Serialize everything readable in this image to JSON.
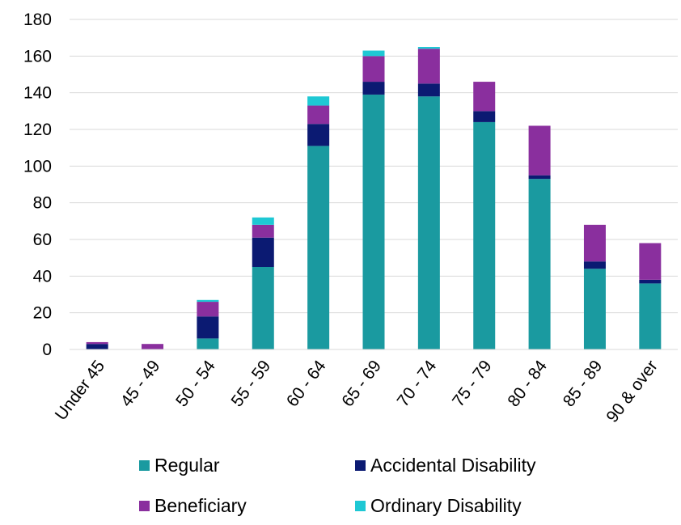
{
  "chart_data": {
    "type": "bar",
    "stacked": true,
    "title": "",
    "xlabel": "",
    "ylabel": "",
    "ylim": [
      0,
      180
    ],
    "yticks": [
      0,
      20,
      40,
      60,
      80,
      100,
      120,
      140,
      160,
      180
    ],
    "grid": "horizontal",
    "legend_position": "bottom",
    "categories": [
      "Under 45",
      "45 - 49",
      "50 - 54",
      "55 - 59",
      "60 - 64",
      "65 - 69",
      "70 - 74",
      "75 - 79",
      "80 - 84",
      "85 - 89",
      "90 & over"
    ],
    "series": [
      {
        "name": "Regular",
        "color": "#1a9aa0",
        "values": [
          0,
          0,
          6,
          45,
          111,
          139,
          138,
          124,
          93,
          44,
          36
        ]
      },
      {
        "name": "Accidental Disability",
        "color": "#0b1a72",
        "values": [
          3,
          0,
          12,
          16,
          12,
          7,
          7,
          6,
          2,
          4,
          2
        ]
      },
      {
        "name": "Beneficiary",
        "color": "#8a2f9e",
        "values": [
          1,
          3,
          8,
          7,
          10,
          14,
          19,
          16,
          27,
          20,
          20
        ]
      },
      {
        "name": "Ordinary Disability",
        "color": "#1ec8d4",
        "values": [
          0,
          0,
          1,
          4,
          5,
          3,
          1,
          0,
          0,
          0,
          0
        ]
      }
    ]
  }
}
